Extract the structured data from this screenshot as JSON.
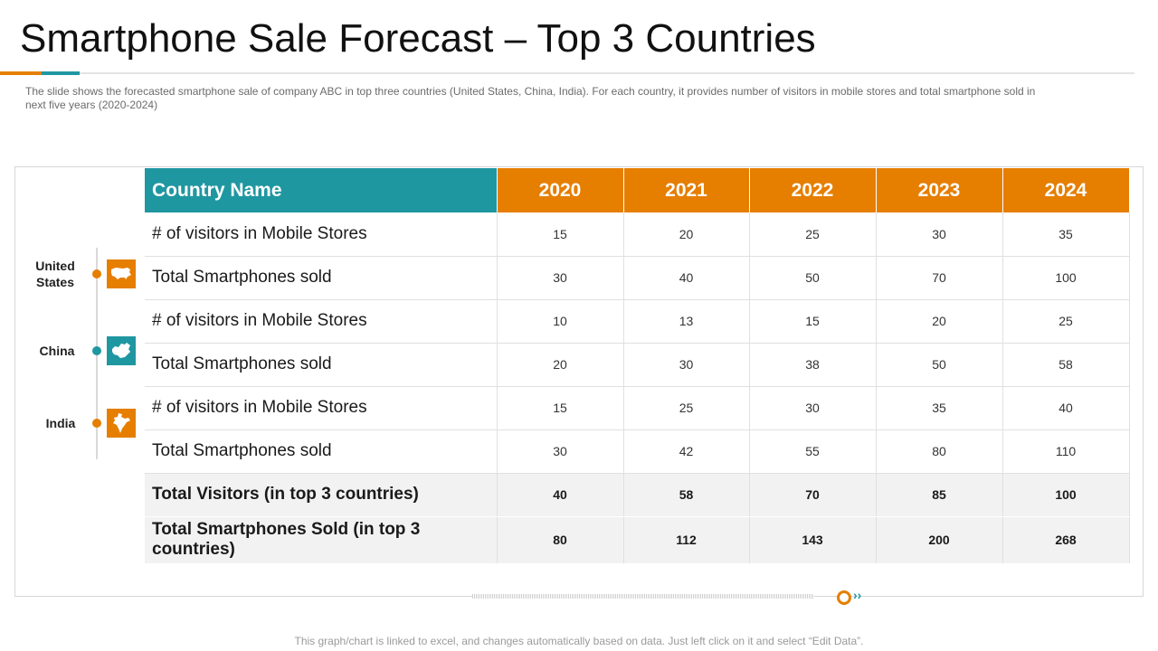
{
  "slide": {
    "title": "Smartphone Sale Forecast – Top 3 Countries",
    "subtitle": "The slide shows the forecasted smartphone  sale of company ABC in top three countries (United States, China, India). For each country, it provides  number  of visitors in mobile stores and total smartphone  sold in next five  years (2020-2024)",
    "footer": "This graph/chart is linked to excel,  and changes automatically based on data. Just left click on it and select “Edit Data”."
  },
  "colors": {
    "orange": "#e67e00",
    "teal": "#1f97a1"
  },
  "countries": [
    {
      "label_line1": "United",
      "label_line2": "States",
      "icon": "usa-map-icon",
      "color": "#e67e00"
    },
    {
      "label_line1": "China",
      "label_line2": "",
      "icon": "china-map-icon",
      "color": "#1f97a1"
    },
    {
      "label_line1": "India",
      "label_line2": "",
      "icon": "india-map-icon",
      "color": "#e67e00"
    }
  ],
  "table": {
    "header": {
      "name": "Country Name",
      "years": [
        "2020",
        "2021",
        "2022",
        "2023",
        "2024"
      ]
    },
    "rows": [
      {
        "name": "# of visitors in Mobile Stores",
        "values": [
          "15",
          "20",
          "25",
          "30",
          "35"
        ]
      },
      {
        "name": "Total Smartphones sold",
        "values": [
          "30",
          "40",
          "50",
          "70",
          "100"
        ]
      },
      {
        "name": "# of visitors in Mobile Stores",
        "values": [
          "10",
          "13",
          "15",
          "20",
          "25"
        ]
      },
      {
        "name": "Total Smartphones sold",
        "values": [
          "20",
          "30",
          "38",
          "50",
          "58"
        ]
      },
      {
        "name": "# of visitors in Mobile Stores",
        "values": [
          "15",
          "25",
          "30",
          "35",
          "40"
        ]
      },
      {
        "name": "Total Smartphones sold",
        "values": [
          "30",
          "42",
          "55",
          "80",
          "110"
        ]
      }
    ],
    "totals": [
      {
        "name": "Total Visitors (in top 3 countries)",
        "values": [
          "40",
          "58",
          "70",
          "85",
          "100"
        ]
      },
      {
        "name": "Total Smartphones Sold (in top 3 countries)",
        "values": [
          "80",
          "112",
          "143",
          "200",
          "268"
        ]
      }
    ]
  }
}
